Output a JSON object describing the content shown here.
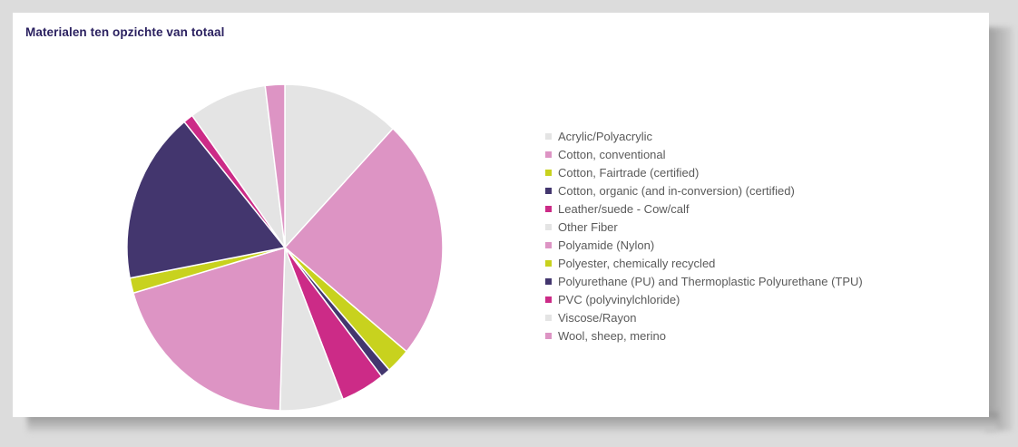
{
  "title": "Materialen ten opzichte van totaal",
  "chart_data": {
    "type": "pie",
    "title": "Materialen ten opzichte van totaal",
    "start_angle_deg": 0,
    "direction": "clockwise",
    "legend_position": "right",
    "slices": [
      {
        "label": "Acrylic/Polyacrylic",
        "value": 12.0,
        "color": "#e4e4e4"
      },
      {
        "label": "Cotton, conventional",
        "value": 24.0,
        "color": "#dd94c4"
      },
      {
        "label": "Cotton, Fairtrade (certified)",
        "value": 2.5,
        "color": "#c8d21e"
      },
      {
        "label": "Cotton, organic (and in-conversion) (certified)",
        "value": 1.0,
        "color": "#43366e"
      },
      {
        "label": "Leather/suede - Cow/calf",
        "value": 4.5,
        "color": "#cc2b87"
      },
      {
        "label": "Other Fiber",
        "value": 6.5,
        "color": "#e4e4e4"
      },
      {
        "label": "Polyamide (Nylon)",
        "value": 20.0,
        "color": "#dd94c4"
      },
      {
        "label": "Polyester, chemically recycled",
        "value": 1.5,
        "color": "#c8d21e"
      },
      {
        "label": "Polyurethane (PU) and Thermoplastic Polyurethane (TPU)",
        "value": 17.0,
        "color": "#43366e"
      },
      {
        "label": "PVC (polyvinylchloride)",
        "value": 1.0,
        "color": "#cc2b87"
      },
      {
        "label": "Viscose/Rayon",
        "value": 8.0,
        "color": "#e4e4e4"
      },
      {
        "label": "Wool, sheep, merino",
        "value": 2.0,
        "color": "#dd94c4"
      }
    ]
  }
}
